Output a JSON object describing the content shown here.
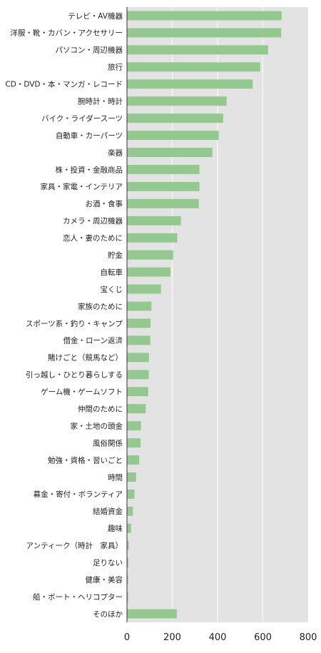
{
  "chart_data": {
    "type": "bar",
    "orientation": "horizontal",
    "title": "",
    "xlabel": "",
    "ylabel": "",
    "xlim": [
      0,
      800
    ],
    "xticks": [
      0,
      200,
      400,
      600,
      800
    ],
    "grid": true,
    "colors": {
      "bar": "#93c98f",
      "plot_background": "#e3e3e3",
      "gridline": "#ffffff"
    },
    "categories": [
      "テレビ・AV機器",
      "洋服・靴・カバン・アクセサリー",
      "パソコン・周辺機器",
      "旅行",
      "CD・DVD・本・マンガ・レコード",
      "腕時計・時計",
      "バイク・ライダースーツ",
      "自動車・カーパーツ",
      "楽器",
      "株・投資・金融商品",
      "家具・家電・インテリア",
      "お酒・食事",
      "カメラ・周辺機器",
      "恋人・妻のために",
      "貯金",
      "自転車",
      "宝くじ",
      "家族のために",
      "スポーツ系・釣り・キャンプ",
      "借金・ローン返済",
      "賭けごと（競馬など）",
      "引っ越し・ひとり暮らしする",
      "ゲーム機・ゲームソフト",
      "仲間のために",
      "家・土地の頭金",
      "風俗関係",
      "勉強・資格・習いごと",
      "時間",
      "募金・寄付・ボランティア",
      "結婚資金",
      "趣味",
      "アンティーク（時計　家具）",
      "足りない",
      "健康・美容",
      "船・ボート・ヘリコプター",
      "そのほか"
    ],
    "values": [
      683,
      681,
      623,
      588,
      555,
      440,
      425,
      405,
      377,
      320,
      320,
      317,
      238,
      222,
      204,
      192,
      150,
      108,
      104,
      103,
      97,
      96,
      94,
      83,
      62,
      60,
      54,
      40,
      33,
      26,
      18,
      8,
      6,
      5,
      5,
      220
    ]
  }
}
